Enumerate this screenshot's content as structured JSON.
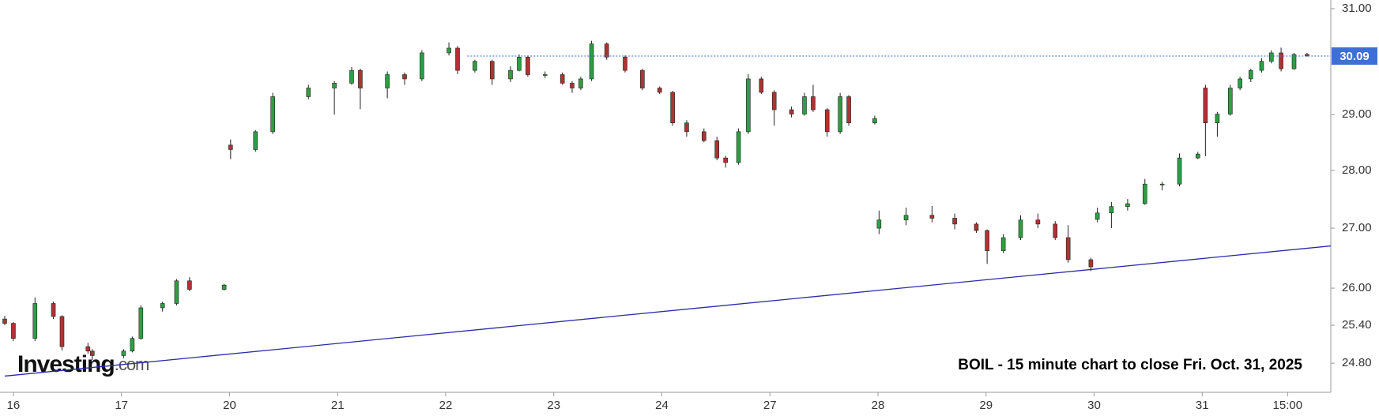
{
  "chart_data": {
    "type": "candlestick",
    "annotation": "BOIL - 15 minute chart to close Fri. Oct. 31, 2025",
    "logo": "Investing",
    "logo_suffix": ".com",
    "up_color": "#2e9e44",
    "down_color": "#b03232",
    "log_scale": true,
    "x": [
      -0.08,
      0,
      0.2,
      0.37,
      0.45,
      0.69,
      0.73,
      1.02,
      1.1,
      1.18,
      1.38,
      1.51,
      1.63,
      1.95,
      2.01,
      2.24,
      2.4,
      2.73,
      2.97,
      3.13,
      3.21,
      3.46,
      3.62,
      3.78,
      4.03,
      4.11,
      4.27,
      4.43,
      4.6,
      4.68,
      4.76,
      4.92,
      5.08,
      5.17,
      5.25,
      5.35,
      5.49,
      5.66,
      5.82,
      5.98,
      6.1,
      6.23,
      6.39,
      6.51,
      6.59,
      6.71,
      6.8,
      6.92,
      7.04,
      7.2,
      7.32,
      7.4,
      7.53,
      7.65,
      7.73,
      7.97,
      8.01,
      8.26,
      8.5,
      8.71,
      8.91,
      9.01,
      9.16,
      9.32,
      9.48,
      9.64,
      9.76,
      9.97,
      10.03,
      10.16,
      10.31,
      10.47,
      10.63,
      10.79,
      10.96,
      11.03,
      11.14,
      11.26,
      11.35,
      11.45,
      11.55,
      11.64,
      11.73,
      11.85,
      11.97
    ],
    "open": [
      25.5,
      25.43,
      25.19,
      25.75,
      25.54,
      25.06,
      24.99,
      24.92,
      24.99,
      25.19,
      25.68,
      25.75,
      26.12,
      25.98,
      28.45,
      28.37,
      28.69,
      29.33,
      29.49,
      29.58,
      29.82,
      29.49,
      29.74,
      29.66,
      30.15,
      30.24,
      29.82,
      29.99,
      29.66,
      29.82,
      30.07,
      29.74,
      29.74,
      29.58,
      29.49,
      29.66,
      30.32,
      30.07,
      29.82,
      29.49,
      29.41,
      28.85,
      28.69,
      28.53,
      28.22,
      28.14,
      28.69,
      29.66,
      29.41,
      29.09,
      29.01,
      29.33,
      29.09,
      28.69,
      29.33,
      28.85,
      27.0,
      27.14,
      27.22,
      27.17,
      27.07,
      26.96,
      26.62,
      26.84,
      27.14,
      27.07,
      26.84,
      26.47,
      27.15,
      27.26,
      27.37,
      27.42,
      27.76,
      27.76,
      28.22,
      29.49,
      28.85,
      29.01,
      29.49,
      29.66,
      29.82,
      29.99,
      30.15,
      29.85,
      30.12
    ],
    "high": [
      25.55,
      25.45,
      25.85,
      25.78,
      25.56,
      25.12,
      25.02,
      25.02,
      25.22,
      25.72,
      25.78,
      26.15,
      26.18,
      26.07,
      28.55,
      28.72,
      29.4,
      29.55,
      29.62,
      29.88,
      29.85,
      29.8,
      29.78,
      30.2,
      30.35,
      30.28,
      30.02,
      30.02,
      29.9,
      30.12,
      30.1,
      29.8,
      29.78,
      29.62,
      29.7,
      30.38,
      30.35,
      30.1,
      29.85,
      29.52,
      29.44,
      28.9,
      28.75,
      28.6,
      28.26,
      28.75,
      29.75,
      29.7,
      29.45,
      29.15,
      29.4,
      29.55,
      29.12,
      29.4,
      29.36,
      28.98,
      27.3,
      27.35,
      27.38,
      27.25,
      27.1,
      26.98,
      26.9,
      27.22,
      27.25,
      27.12,
      27.05,
      26.5,
      27.35,
      27.45,
      27.5,
      27.85,
      27.8,
      28.3,
      28.33,
      29.55,
      29.05,
      29.55,
      29.7,
      29.85,
      30.05,
      30.2,
      30.25,
      30.15,
      30.15
    ],
    "low": [
      25.4,
      25.15,
      25.15,
      25.5,
      25.0,
      24.95,
      24.85,
      24.88,
      24.97,
      25.17,
      25.62,
      25.72,
      25.95,
      25.96,
      28.2,
      28.33,
      28.65,
      29.28,
      29.0,
      29.55,
      29.1,
      29.3,
      29.55,
      29.62,
      30.1,
      29.75,
      29.78,
      29.55,
      29.6,
      29.8,
      29.7,
      29.68,
      29.55,
      29.4,
      29.45,
      29.62,
      30.02,
      29.78,
      29.45,
      29.38,
      28.8,
      28.6,
      28.5,
      28.18,
      28.05,
      28.1,
      28.65,
      29.38,
      28.8,
      28.95,
      28.98,
      29.05,
      28.6,
      28.65,
      28.8,
      28.82,
      26.9,
      27.05,
      27.1,
      26.98,
      26.92,
      26.4,
      26.58,
      26.8,
      27.0,
      26.8,
      26.42,
      26.28,
      27.1,
      27.0,
      27.3,
      27.4,
      27.65,
      27.72,
      28.2,
      28.25,
      28.6,
      28.98,
      29.45,
      29.6,
      29.78,
      29.95,
      29.8,
      29.83,
      30.08
    ],
    "close": [
      25.43,
      25.19,
      25.75,
      25.54,
      25.06,
      24.99,
      24.92,
      24.99,
      25.19,
      25.68,
      25.75,
      26.12,
      25.98,
      26.05,
      28.37,
      28.69,
      29.33,
      29.49,
      29.58,
      29.82,
      29.49,
      29.74,
      29.66,
      30.15,
      30.24,
      29.82,
      29.99,
      29.66,
      29.82,
      30.07,
      29.74,
      29.74,
      29.58,
      29.49,
      29.66,
      30.32,
      30.07,
      29.82,
      29.49,
      29.41,
      28.85,
      28.69,
      28.53,
      28.22,
      28.14,
      28.69,
      29.66,
      29.41,
      29.09,
      29.01,
      29.33,
      29.09,
      28.69,
      29.33,
      28.85,
      28.93,
      27.14,
      27.22,
      27.17,
      27.07,
      26.96,
      26.62,
      26.84,
      27.14,
      27.07,
      26.84,
      26.47,
      26.35,
      27.26,
      27.37,
      27.42,
      27.76,
      27.76,
      28.22,
      28.29,
      28.85,
      29.01,
      29.49,
      29.66,
      29.82,
      29.99,
      30.15,
      29.85,
      30.12,
      30.09
    ],
    "xlim": [
      -0.08,
      12.19
    ],
    "xticks": [
      {
        "value": 0,
        "label": "16"
      },
      {
        "value": 1,
        "label": "17"
      },
      {
        "value": 2,
        "label": "20"
      },
      {
        "value": 3,
        "label": "21"
      },
      {
        "value": 4,
        "label": "22"
      },
      {
        "value": 5,
        "label": "23"
      },
      {
        "value": 6,
        "label": "24"
      },
      {
        "value": 7,
        "label": "27"
      },
      {
        "value": 8,
        "label": "28"
      },
      {
        "value": 9,
        "label": "29"
      },
      {
        "value": 10,
        "label": "30"
      },
      {
        "value": 11,
        "label": "31"
      },
      {
        "value": 11.79,
        "label": "15:00"
      }
    ],
    "ylim": [
      24.35,
      31.17
    ],
    "yticks": [
      {
        "value": 24.8,
        "label": "24.80"
      },
      {
        "value": 25.4,
        "label": "25.40"
      },
      {
        "value": 26,
        "label": "26.00"
      },
      {
        "value": 27,
        "label": "27.00"
      },
      {
        "value": 28,
        "label": "28.00"
      },
      {
        "value": 29,
        "label": "29.00"
      },
      {
        "value": 31,
        "label": "31.00"
      }
    ],
    "last_price": 30.09,
    "last_price_color": "#3d6fd6",
    "trendline": {
      "x": [
        -0.08,
        12.19
      ],
      "y": [
        24.6,
        26.7
      ],
      "color": "#2a2aa8"
    }
  }
}
